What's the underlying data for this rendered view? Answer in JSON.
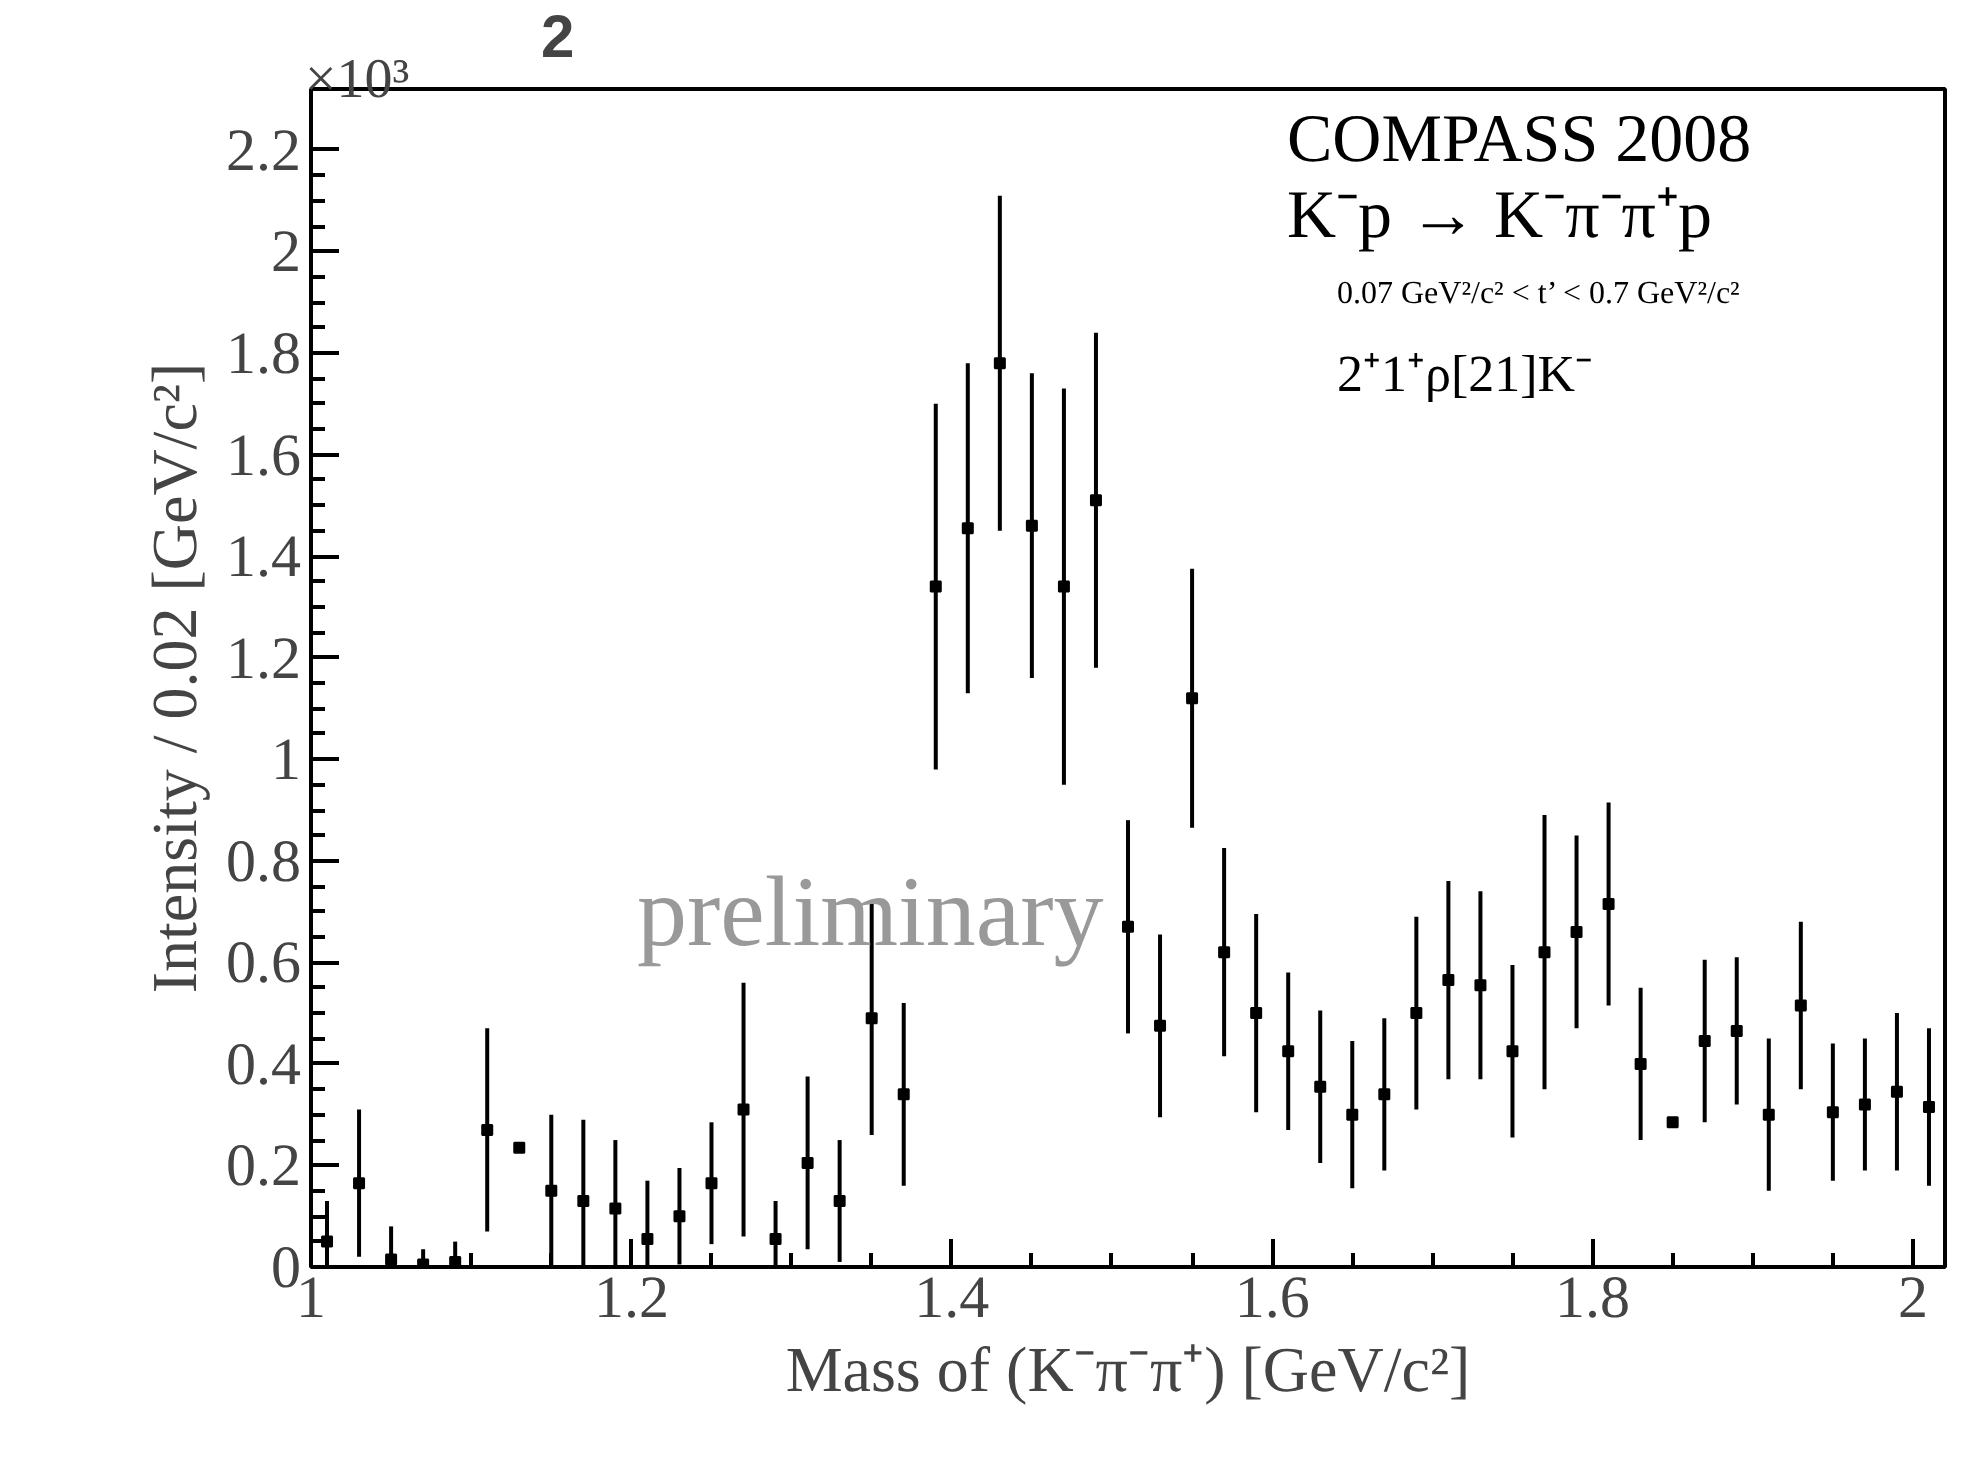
{
  "chart_data": {
    "type": "scatter",
    "title": "2",
    "xlabel": "Mass of (K⁻π⁻π⁺) [GeV/c²]",
    "ylabel": "Intensity / 0.02 [GeV/c²]",
    "annotations": [
      "×10³",
      "COMPASS 2008",
      "K⁻p → K⁻π⁻π⁺p",
      "0.07 GeV²/c² < t’ < 0.7 GeV²/c²",
      "2⁺1⁺ρ[21]K⁻",
      "preliminary"
    ],
    "x": [
      1.01,
      1.03,
      1.05,
      1.07,
      1.09,
      1.11,
      1.13,
      1.15,
      1.17,
      1.19,
      1.21,
      1.23,
      1.25,
      1.27,
      1.29,
      1.31,
      1.33,
      1.35,
      1.37,
      1.39,
      1.41,
      1.43,
      1.45,
      1.47,
      1.49,
      1.51,
      1.53,
      1.55,
      1.57,
      1.59,
      1.61,
      1.63,
      1.65,
      1.67,
      1.69,
      1.71,
      1.73,
      1.75,
      1.77,
      1.79,
      1.81,
      1.83,
      1.85,
      1.87,
      1.89,
      1.91,
      1.93,
      1.95,
      1.97,
      1.99,
      2.01
    ],
    "values": [
      0.05,
      0.165,
      0.015,
      0.005,
      0.01,
      0.27,
      0.235,
      0.15,
      0.13,
      0.115,
      0.055,
      0.1,
      0.165,
      0.31,
      0.055,
      0.205,
      0.13,
      0.49,
      0.34,
      1.34,
      1.455,
      1.78,
      1.46,
      1.34,
      1.51,
      0.67,
      0.475,
      1.12,
      0.62,
      0.5,
      0.425,
      0.355,
      0.3,
      0.34,
      0.5,
      0.565,
      0.555,
      0.425,
      0.62,
      0.66,
      0.715,
      0.4,
      0.285,
      0.445,
      0.465,
      0.3,
      0.515,
      0.305,
      0.32,
      0.345,
      0.315
    ],
    "errors": [
      [
        0,
        0.13
      ],
      [
        0.02,
        0.31
      ],
      [
        0,
        0.08
      ],
      [
        0,
        0.035
      ],
      [
        0,
        0.05
      ],
      0.2,
      null,
      0.15,
      [
        0,
        0.29
      ],
      [
        0,
        0.25
      ],
      [
        0,
        0.17
      ],
      [
        0.005,
        0.195
      ],
      0.12,
      0.25,
      [
        0,
        0.13
      ],
      0.17,
      0.12,
      0.23,
      0.18,
      0.36,
      0.325,
      0.33,
      0.3,
      0.39,
      0.33,
      0.21,
      0.18,
      0.255,
      0.205,
      0.195,
      0.155,
      0.15,
      0.145,
      0.15,
      0.19,
      0.195,
      0.185,
      0.17,
      0.27,
      0.19,
      0.2,
      0.15,
      null,
      0.16,
      0.145,
      0.15,
      0.165,
      0.135,
      0.13,
      0.155,
      0.155
    ],
    "color": "#000000",
    "marker": "square",
    "grid": false,
    "xlim": [
      1,
      2.02
    ],
    "ylim": [
      0,
      2.32
    ],
    "xticks": [
      1,
      1.2,
      1.4,
      1.6,
      1.8,
      2
    ],
    "yticks": [
      0,
      0.2,
      0.4,
      0.6,
      0.8,
      1,
      1.2,
      1.4,
      1.6,
      1.8,
      2,
      2.2
    ]
  }
}
